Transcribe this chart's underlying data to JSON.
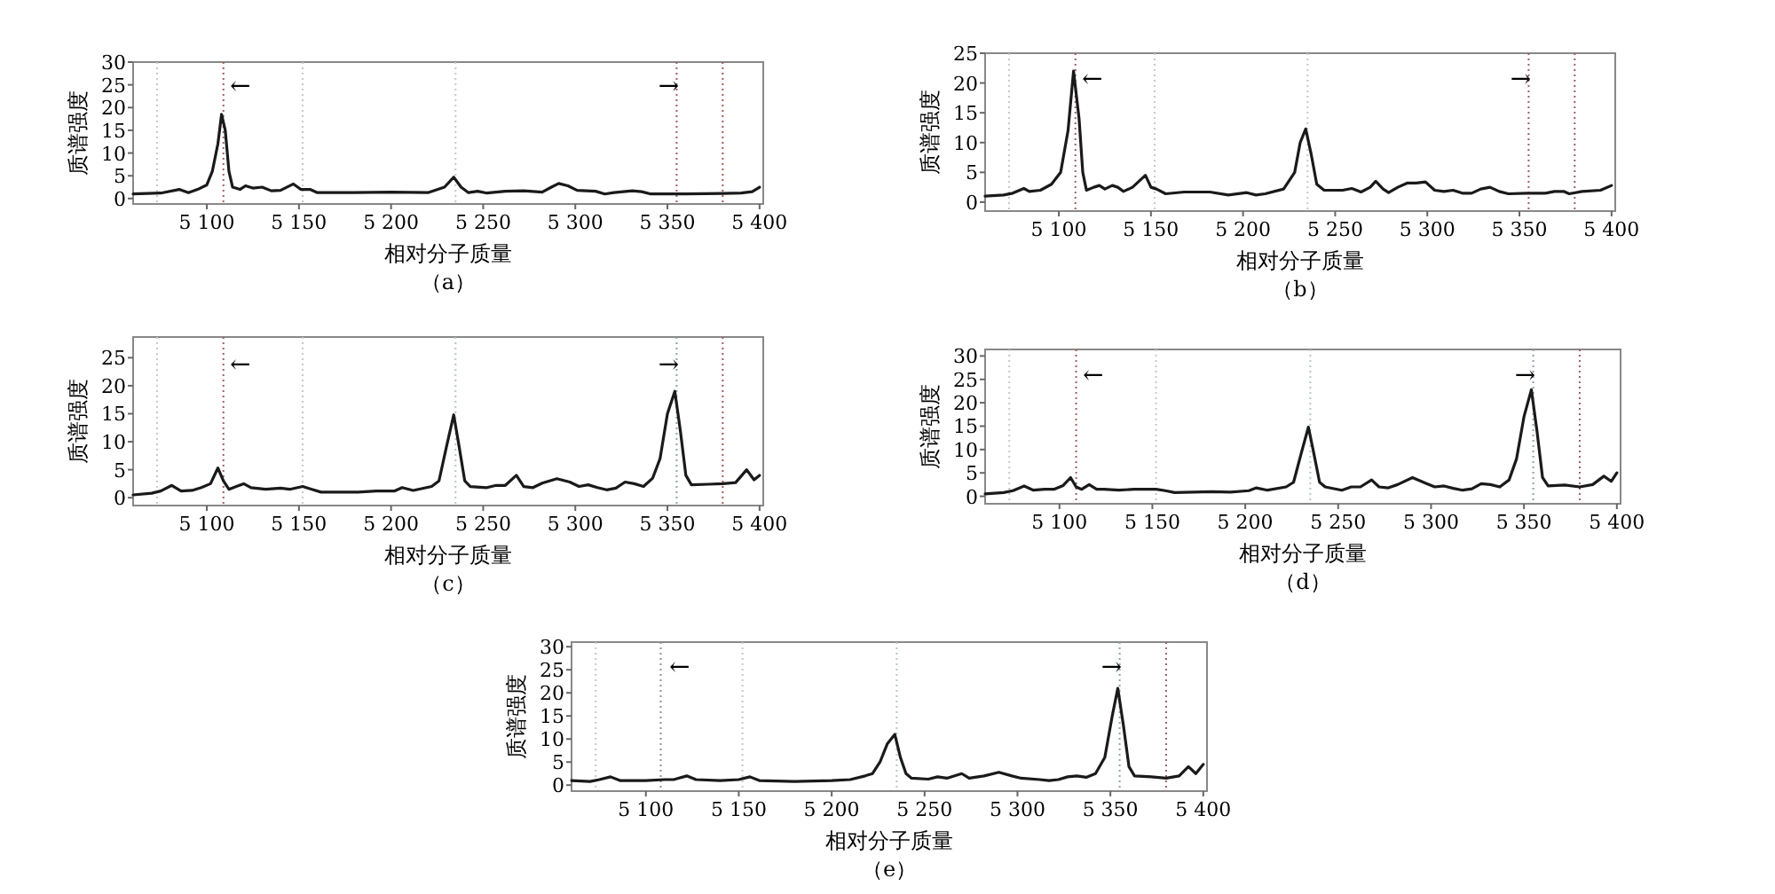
{
  "chart_data": [
    {
      "type": "line",
      "xlabel": "相对分子质量",
      "ylabel": "质谱强度",
      "xlim": [
        5060,
        5402
      ],
      "ylim": [
        -1.2,
        30
      ],
      "xticks": [
        {
          "value": 5100,
          "label": "5 100"
        },
        {
          "value": 5150,
          "label": "5 150"
        },
        {
          "value": 5200,
          "label": "5 200"
        },
        {
          "value": 5250,
          "label": "5 250"
        },
        {
          "value": 5300,
          "label": "5 300"
        },
        {
          "value": 5350,
          "label": "5 350"
        },
        {
          "value": 5400,
          "label": "5 400"
        }
      ],
      "yticks": [
        0,
        5,
        10,
        15,
        20,
        25,
        30
      ],
      "x": [
        5060,
        5075,
        5085,
        5090,
        5095,
        5100,
        5103,
        5106,
        5108,
        5110,
        5112,
        5114,
        5118,
        5121,
        5125,
        5130,
        5135,
        5140,
        5147,
        5151,
        5156,
        5160,
        5180,
        5200,
        5220,
        5229,
        5234,
        5238,
        5242,
        5247,
        5252,
        5262,
        5272,
        5282,
        5287,
        5291,
        5296,
        5301,
        5311,
        5316,
        5321,
        5331,
        5336,
        5341,
        5360,
        5380,
        5390,
        5396,
        5400
      ],
      "series": [
        {
          "color": "#1a1a1a",
          "values": [
            1.0,
            1.2,
            2.0,
            1.3,
            2.0,
            3,
            6,
            12,
            18.5,
            15,
            6,
            2.5,
            2,
            2.8,
            2.3,
            2.5,
            1.7,
            1.8,
            3.2,
            2,
            2,
            1.3,
            1.3,
            1.4,
            1.3,
            2.5,
            4.7,
            2.5,
            1.3,
            1.6,
            1.2,
            1.6,
            1.7,
            1.4,
            2.5,
            3.3,
            2.8,
            1.8,
            1.6,
            1,
            1.3,
            1.7,
            1.5,
            1,
            1,
            1.1,
            1.2,
            1.5,
            2.5
          ]
        }
      ],
      "ref_lines": [
        {
          "axis": "x",
          "value": 5073,
          "color": "#c8c8c8",
          "line_style": "dotted"
        },
        {
          "axis": "x",
          "value": 5109,
          "color": "#a06060",
          "line_style": "dotted"
        },
        {
          "axis": "x",
          "value": 5152,
          "color": "#c8c8c8",
          "line_style": "dotted"
        },
        {
          "axis": "x",
          "value": 5235,
          "color": "#c8c8c8",
          "line_style": "dotted"
        },
        {
          "axis": "x",
          "value": 5355,
          "color": "#a06060",
          "line_style": "dotted"
        },
        {
          "axis": "x",
          "value": 5380,
          "color": "#a06060",
          "line_style": "dotted"
        }
      ],
      "annotations": [
        "←",
        "→",
        "（a）"
      ]
    },
    {
      "type": "line",
      "xlabel": "相对分子质量",
      "ylabel": "质谱强度",
      "xlim": [
        5060,
        5402
      ],
      "ylim": [
        -1.5,
        25
      ],
      "xticks": [
        {
          "value": 5100,
          "label": "5 100"
        },
        {
          "value": 5150,
          "label": "5 150"
        },
        {
          "value": 5200,
          "label": "5 200"
        },
        {
          "value": 5250,
          "label": "5 250"
        },
        {
          "value": 5300,
          "label": "5 300"
        },
        {
          "value": 5350,
          "label": "5 350"
        },
        {
          "value": 5400,
          "label": "5 400"
        }
      ],
      "yticks": [
        0,
        5,
        10,
        15,
        20,
        25
      ],
      "x": [
        5060,
        5070,
        5075,
        5081,
        5084,
        5090,
        5096,
        5101,
        5105,
        5108,
        5111,
        5113,
        5115,
        5119,
        5122,
        5125,
        5129,
        5132,
        5135,
        5140,
        5147,
        5150,
        5153,
        5158,
        5168,
        5182,
        5192,
        5202,
        5207,
        5212,
        5222,
        5228,
        5231,
        5234,
        5237,
        5240,
        5244,
        5254,
        5259,
        5264,
        5269,
        5272,
        5276,
        5279,
        5284,
        5289,
        5294,
        5299,
        5304,
        5309,
        5314,
        5319,
        5324,
        5329,
        5334,
        5339,
        5344,
        5354,
        5364,
        5369,
        5374,
        5377,
        5384,
        5394,
        5400
      ],
      "series": [
        {
          "color": "#1a1a1a",
          "values": [
            1,
            1.2,
            1.5,
            2.3,
            1.8,
            2,
            3,
            5,
            12,
            22,
            14,
            5,
            2,
            2.5,
            2.8,
            2.2,
            2.8,
            2.5,
            1.8,
            2.5,
            4.5,
            2.5,
            2.2,
            1.4,
            1.7,
            1.7,
            1.2,
            1.6,
            1.2,
            1.4,
            2.2,
            5,
            10,
            12.3,
            8,
            3,
            2,
            2,
            2.3,
            1.7,
            2.5,
            3.5,
            2.2,
            1.6,
            2.5,
            3.2,
            3.2,
            3.4,
            2,
            1.8,
            2,
            1.5,
            1.5,
            2.2,
            2.5,
            1.8,
            1.4,
            1.5,
            1.5,
            1.8,
            1.8,
            1.4,
            1.8,
            2,
            2.8
          ]
        }
      ],
      "ref_lines": [
        {
          "axis": "x",
          "value": 5073,
          "color": "#c8c8c8",
          "line_style": "dotted"
        },
        {
          "axis": "x",
          "value": 5109,
          "color": "#a06060",
          "line_style": "dotted"
        },
        {
          "axis": "x",
          "value": 5152,
          "color": "#c8c8c8",
          "line_style": "dotted"
        },
        {
          "axis": "x",
          "value": 5235,
          "color": "#c8c8c8",
          "line_style": "dotted"
        },
        {
          "axis": "x",
          "value": 5355,
          "color": "#a06060",
          "line_style": "dotted"
        },
        {
          "axis": "x",
          "value": 5380,
          "color": "#a06060",
          "line_style": "dotted"
        }
      ],
      "annotations": [
        "←",
        "→",
        "（b）"
      ]
    },
    {
      "type": "line",
      "xlabel": "相对分子质量",
      "ylabel": "质谱强度",
      "xlim": [
        5060,
        5402
      ],
      "ylim": [
        -1.4,
        28.7
      ],
      "xticks": [
        {
          "value": 5100,
          "label": "5 100"
        },
        {
          "value": 5150,
          "label": "5 150"
        },
        {
          "value": 5200,
          "label": "5 200"
        },
        {
          "value": 5250,
          "label": "5 250"
        },
        {
          "value": 5300,
          "label": "5 300"
        },
        {
          "value": 5350,
          "label": "5 350"
        },
        {
          "value": 5400,
          "label": "5 400"
        }
      ],
      "yticks": [
        0,
        5,
        10,
        15,
        20,
        25
      ],
      "x": [
        5060,
        5070,
        5075,
        5081,
        5086,
        5092,
        5097,
        5102,
        5106,
        5109,
        5112,
        5116,
        5120,
        5124,
        5132,
        5140,
        5145,
        5152,
        5157,
        5162,
        5182,
        5192,
        5202,
        5206,
        5212,
        5222,
        5226,
        5230,
        5234,
        5237,
        5240,
        5243,
        5252,
        5257,
        5262,
        5268,
        5272,
        5277,
        5282,
        5290,
        5297,
        5302,
        5307,
        5312,
        5317,
        5322,
        5327,
        5332,
        5337,
        5342,
        5346,
        5350,
        5354,
        5357,
        5360,
        5363,
        5372,
        5380,
        5387,
        5393,
        5397,
        5400
      ],
      "series": [
        {
          "color": "#1a1a1a",
          "values": [
            0.5,
            0.8,
            1.2,
            2.2,
            1.2,
            1.3,
            1.8,
            2.5,
            5.3,
            3,
            1.5,
            2,
            2.5,
            1.8,
            1.5,
            1.7,
            1.5,
            2,
            1.5,
            1,
            1,
            1.2,
            1.2,
            1.8,
            1.3,
            2,
            3,
            9,
            14.8,
            9,
            3,
            2,
            1.8,
            2.2,
            2.2,
            4,
            2,
            1.8,
            2.6,
            3.4,
            2.8,
            2,
            2.3,
            1.8,
            1.4,
            1.7,
            2.8,
            2.5,
            2,
            3.5,
            7,
            15,
            19,
            12,
            4,
            2.3,
            2.4,
            2.5,
            2.7,
            5,
            3.2,
            4
          ]
        }
      ],
      "ref_lines": [
        {
          "axis": "x",
          "value": 5073,
          "color": "#c8c8c8",
          "line_style": "dotted"
        },
        {
          "axis": "x",
          "value": 5109,
          "color": "#a06060",
          "line_style": "dotted"
        },
        {
          "axis": "x",
          "value": 5152,
          "color": "#c8c8c8",
          "line_style": "dotted"
        },
        {
          "axis": "x",
          "value": 5235,
          "color": "#b8c4cc",
          "line_style": "dotted"
        },
        {
          "axis": "x",
          "value": 5355,
          "color": "#90a0b0",
          "line_style": "dotted"
        },
        {
          "axis": "x",
          "value": 5380,
          "color": "#a06060",
          "line_style": "dotted"
        }
      ],
      "annotations": [
        "←",
        "→",
        "（c）"
      ]
    },
    {
      "type": "line",
      "xlabel": "相对分子质量",
      "ylabel": "质谱强度",
      "xlim": [
        5060,
        5402
      ],
      "ylim": [
        -1.6,
        31.4
      ],
      "xticks": [
        {
          "value": 5100,
          "label": "5 100"
        },
        {
          "value": 5150,
          "label": "5 150"
        },
        {
          "value": 5200,
          "label": "5 200"
        },
        {
          "value": 5250,
          "label": "5 250"
        },
        {
          "value": 5300,
          "label": "5 300"
        },
        {
          "value": 5350,
          "label": "5 350"
        },
        {
          "value": 5400,
          "label": "5 400"
        }
      ],
      "yticks": [
        0,
        5,
        10,
        15,
        20,
        25,
        30
      ],
      "x": [
        5060,
        5070,
        5075,
        5081,
        5086,
        5092,
        5097,
        5102,
        5106,
        5109,
        5112,
        5116,
        5120,
        5124,
        5132,
        5140,
        5145,
        5152,
        5157,
        5162,
        5182,
        5192,
        5202,
        5206,
        5212,
        5222,
        5226,
        5230,
        5234,
        5237,
        5240,
        5243,
        5252,
        5257,
        5262,
        5268,
        5272,
        5277,
        5282,
        5290,
        5297,
        5302,
        5307,
        5312,
        5317,
        5322,
        5327,
        5332,
        5337,
        5342,
        5346,
        5350,
        5354,
        5357,
        5360,
        5363,
        5372,
        5380,
        5387,
        5393,
        5397,
        5400
      ],
      "series": [
        {
          "color": "#1a1a1a",
          "values": [
            0.5,
            0.8,
            1.2,
            2.2,
            1.3,
            1.5,
            1.5,
            2.3,
            4,
            2,
            1.5,
            2.5,
            1.5,
            1.5,
            1.3,
            1.5,
            1.5,
            1.5,
            1.2,
            0.8,
            1,
            0.9,
            1.2,
            1.8,
            1.3,
            2,
            3,
            9,
            14.8,
            9,
            3,
            2,
            1.3,
            2,
            2,
            3.5,
            2,
            1.8,
            2.5,
            4,
            2.8,
            2,
            2.2,
            1.7,
            1.3,
            1.6,
            2.7,
            2.5,
            2,
            3.5,
            8,
            17,
            22.8,
            14,
            4,
            2.2,
            2.4,
            2,
            2.5,
            4.3,
            3.2,
            5
          ]
        }
      ],
      "ref_lines": [
        {
          "axis": "x",
          "value": 5073,
          "color": "#c8c8c8",
          "line_style": "dotted"
        },
        {
          "axis": "x",
          "value": 5109,
          "color": "#a06060",
          "line_style": "dotted"
        },
        {
          "axis": "x",
          "value": 5152,
          "color": "#c8c8c8",
          "line_style": "dotted"
        },
        {
          "axis": "x",
          "value": 5235,
          "color": "#b8c4cc",
          "line_style": "dotted"
        },
        {
          "axis": "x",
          "value": 5355,
          "color": "#90a0b0",
          "line_style": "dotted"
        },
        {
          "axis": "x",
          "value": 5380,
          "color": "#a06060",
          "line_style": "dotted"
        }
      ],
      "annotations": [
        "←",
        "→",
        "（d）"
      ]
    },
    {
      "type": "line",
      "xlabel": "相对分子质量",
      "ylabel": "质谱强度",
      "xlim": [
        5060,
        5402
      ],
      "ylim": [
        -1.3,
        31
      ],
      "xticks": [
        {
          "value": 5100,
          "label": "5 100"
        },
        {
          "value": 5150,
          "label": "5 150"
        },
        {
          "value": 5200,
          "label": "5 200"
        },
        {
          "value": 5250,
          "label": "5 250"
        },
        {
          "value": 5300,
          "label": "5 300"
        },
        {
          "value": 5350,
          "label": "5 350"
        },
        {
          "value": 5400,
          "label": "5 400"
        }
      ],
      "yticks": [
        0,
        5,
        10,
        15,
        20,
        25,
        30
      ],
      "x": [
        5060,
        5070,
        5075,
        5081,
        5086,
        5100,
        5110,
        5115,
        5122,
        5127,
        5140,
        5150,
        5156,
        5161,
        5180,
        5200,
        5210,
        5218,
        5222,
        5226,
        5230,
        5234,
        5237,
        5240,
        5243,
        5252,
        5257,
        5262,
        5270,
        5274,
        5282,
        5290,
        5297,
        5302,
        5312,
        5317,
        5322,
        5327,
        5332,
        5337,
        5342,
        5347,
        5351,
        5354,
        5357,
        5360,
        5363,
        5372,
        5380,
        5387,
        5392,
        5396,
        5400
      ],
      "series": [
        {
          "color": "#1a1a1a",
          "values": [
            1,
            0.8,
            1.2,
            1.8,
            1,
            1,
            1.2,
            1.2,
            2,
            1.2,
            1,
            1.2,
            1.8,
            1,
            0.8,
            1,
            1.2,
            2,
            2.5,
            5,
            9,
            11,
            6,
            2.5,
            1.5,
            1.3,
            1.8,
            1.5,
            2.5,
            1.5,
            2,
            2.8,
            2,
            1.5,
            1.2,
            1,
            1.2,
            1.8,
            2,
            1.7,
            2.5,
            6,
            15,
            21,
            13,
            4,
            2,
            1.8,
            1.5,
            2,
            4,
            2.5,
            4.5
          ]
        }
      ],
      "ref_lines": [
        {
          "axis": "x",
          "value": 5073,
          "color": "#c8c8c8",
          "line_style": "dotted"
        },
        {
          "axis": "x",
          "value": 5108,
          "color": "#909090",
          "line_style": "dotted"
        },
        {
          "axis": "x",
          "value": 5152,
          "color": "#c8c8c8",
          "line_style": "dotted"
        },
        {
          "axis": "x",
          "value": 5235,
          "color": "#b8c4cc",
          "line_style": "dotted"
        },
        {
          "axis": "x",
          "value": 5355,
          "color": "#90a0b0",
          "line_style": "dotted"
        },
        {
          "axis": "x",
          "value": 5380,
          "color": "#a06060",
          "line_style": "dotted"
        }
      ],
      "annotations": [
        "←",
        "→",
        "（e）"
      ]
    }
  ]
}
